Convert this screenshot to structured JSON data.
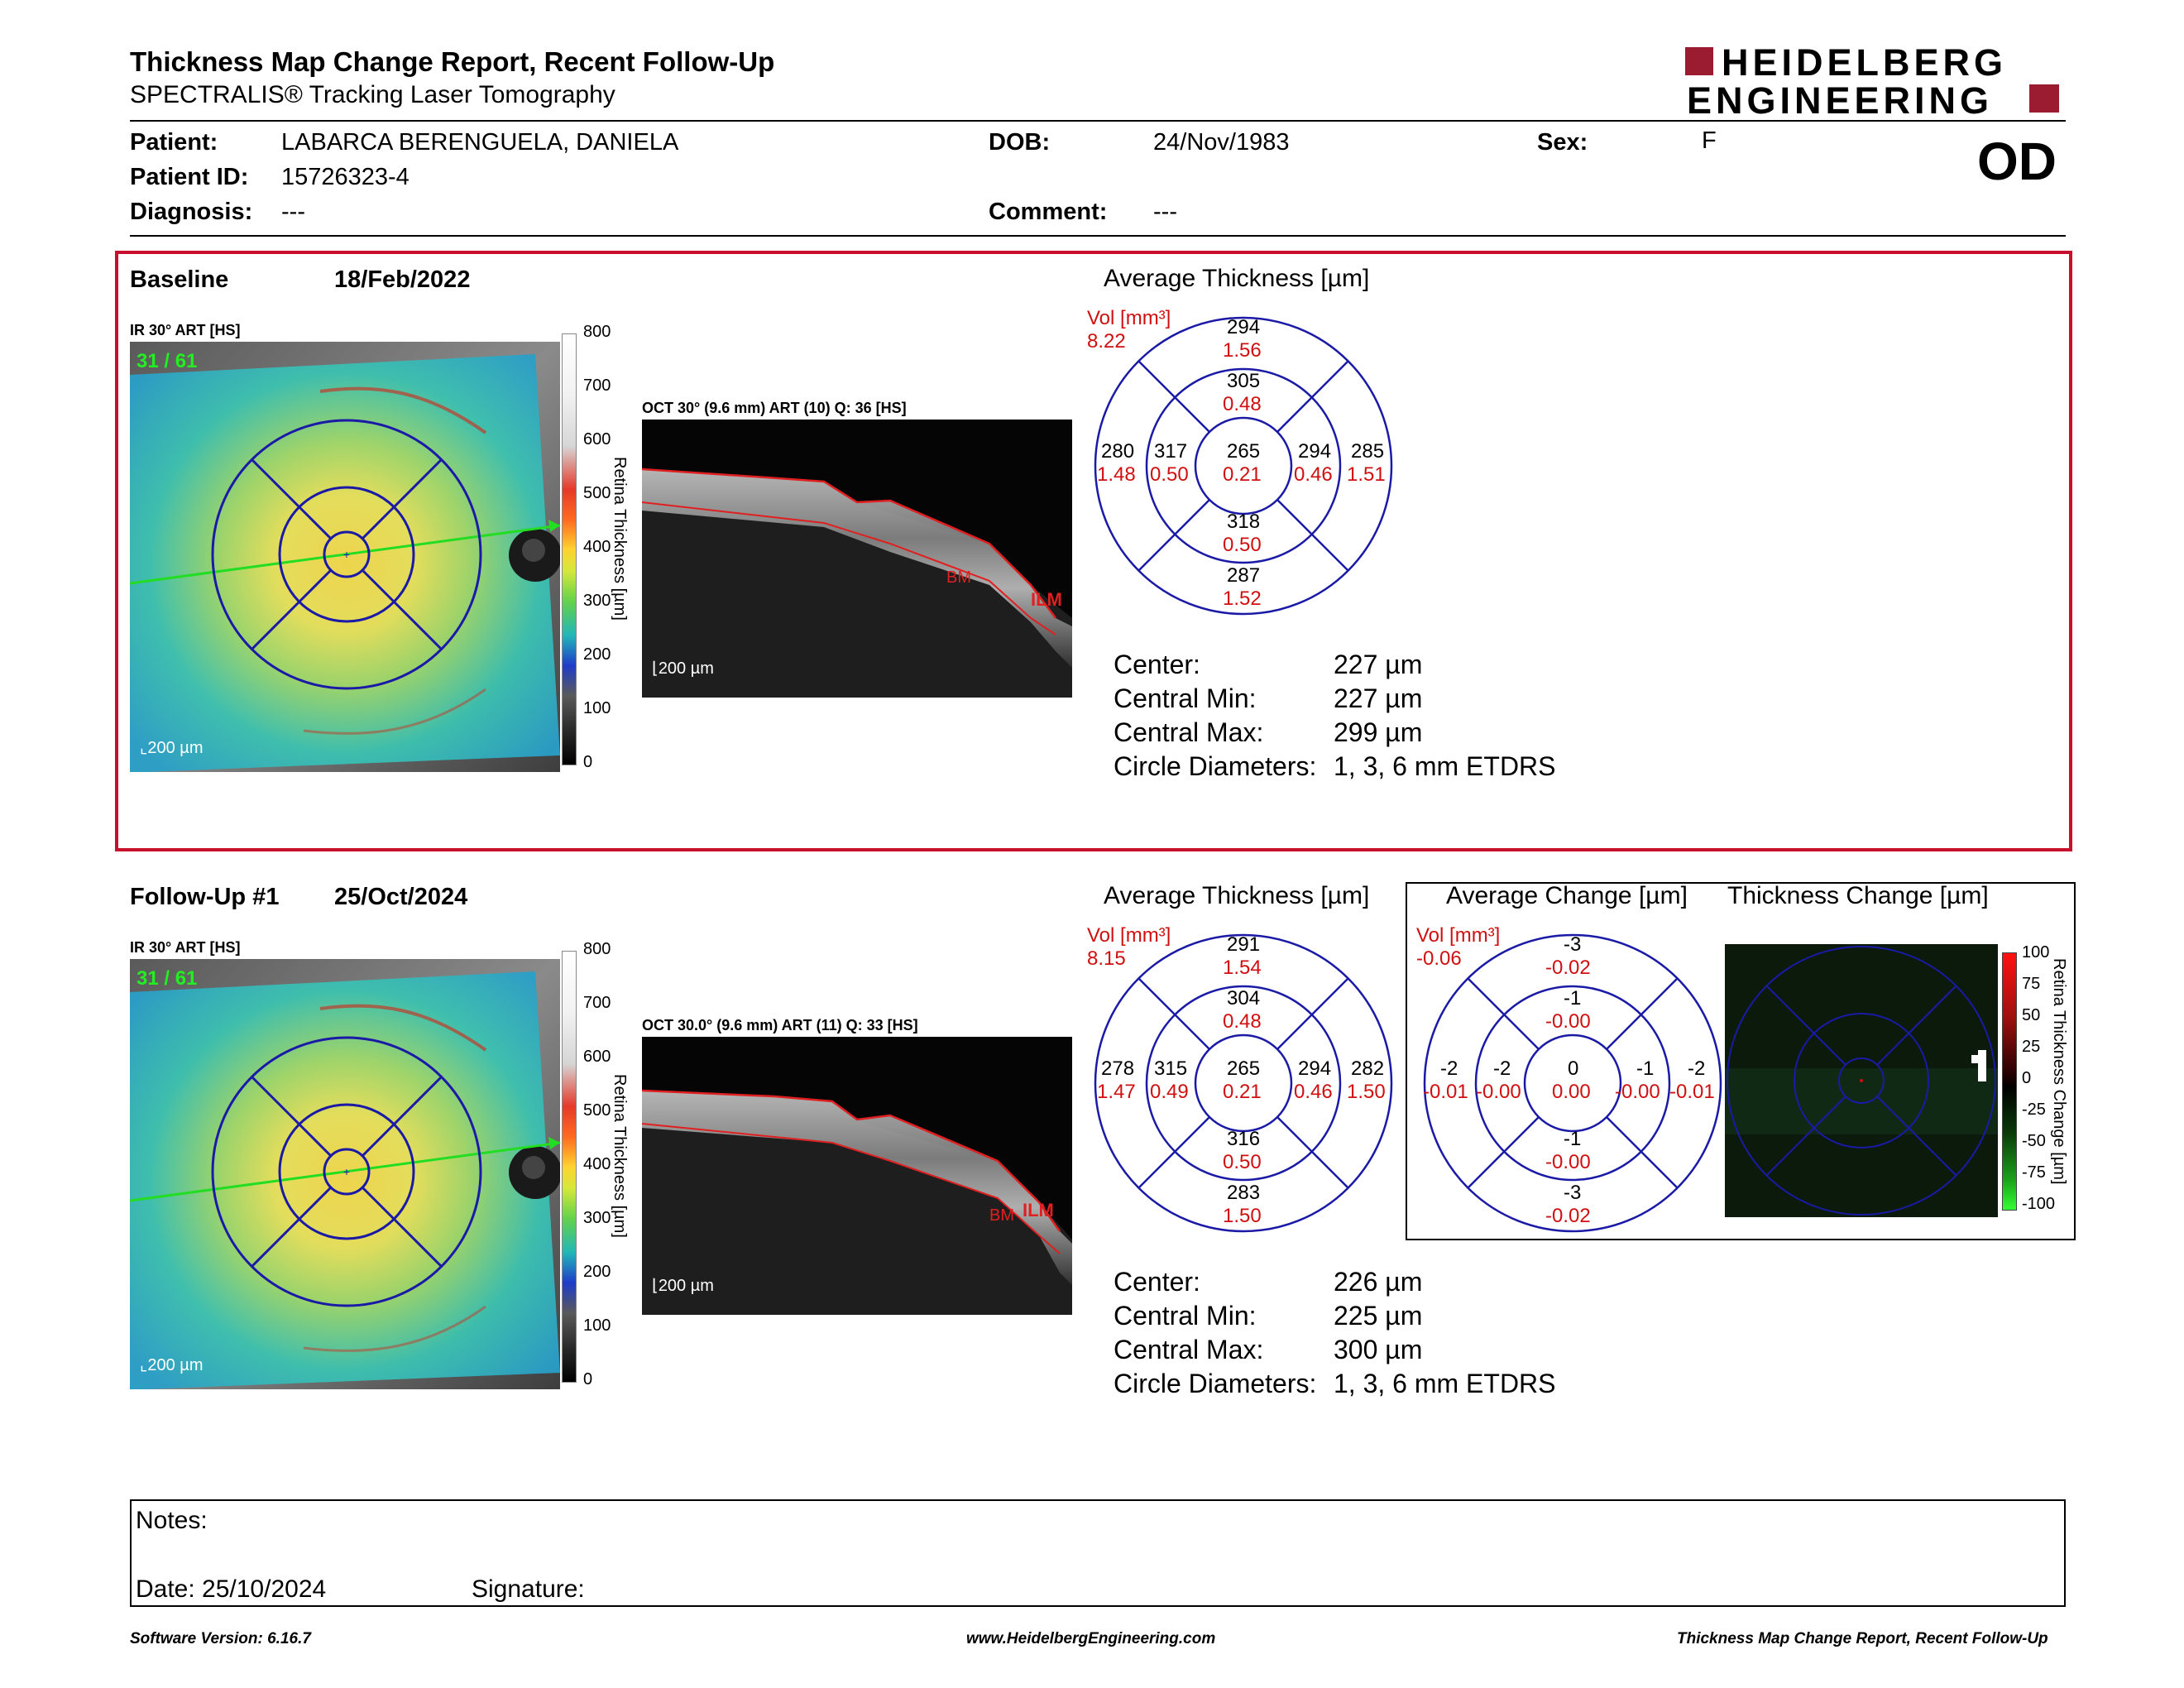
{
  "header": {
    "title": "Thickness Map Change Report, Recent Follow-Up",
    "subtitle": "SPECTRALIS® Tracking Laser Tomography",
    "logo_line1": "HEIDELBERG",
    "logo_line2": "ENGINEERING",
    "eye": "OD"
  },
  "patient": {
    "patient_label": "Patient:",
    "patient_value": "LABARCA BERENGUELA, DANIELA",
    "id_label": "Patient ID:",
    "id_value": "15726323-4",
    "diagnosis_label": "Diagnosis:",
    "diagnosis_value": "---",
    "dob_label": "DOB:",
    "dob_value": "24/Nov/1983",
    "comment_label": "Comment:",
    "comment_value": "---",
    "sex_label": "Sex:",
    "sex_value": "F"
  },
  "baseline": {
    "title": "Baseline",
    "date": "18/Feb/2022",
    "ir_label": "IR 30° ART [HS]",
    "ir_counter": "31 / 61",
    "scale": "200 µm",
    "oct_label": "OCT 30° (9.6 mm) ART (10) Q: 36 [HS]",
    "oct_scale": "200 µm",
    "bm": "BM",
    "ilm": "ILM",
    "avg_title": "Average Thickness [µm]",
    "vol_label": "Vol [mm³]",
    "vol_value": "8.22",
    "sectors": {
      "center_t": "265",
      "center_v": "0.21",
      "in_sup_t": "305",
      "in_sup_v": "0.48",
      "in_inf_t": "318",
      "in_inf_v": "0.50",
      "in_tem_t": "317",
      "in_tem_v": "0.50",
      "in_nas_t": "294",
      "in_nas_v": "0.46",
      "out_sup_t": "294",
      "out_sup_v": "1.56",
      "out_inf_t": "287",
      "out_inf_v": "1.52",
      "out_tem_t": "280",
      "out_tem_v": "1.48",
      "out_nas_t": "285",
      "out_nas_v": "1.51"
    },
    "stats": {
      "center_label": "Center:",
      "center_value": "227 µm",
      "min_label": "Central Min:",
      "min_value": "227 µm",
      "max_label": "Central Max:",
      "max_value": "299 µm",
      "diam_label": "Circle Diameters:",
      "diam_value": "1, 3, 6 mm ETDRS"
    }
  },
  "followup": {
    "title": "Follow-Up #1",
    "date": "25/Oct/2024",
    "ir_label": "IR 30° ART [HS]",
    "ir_counter": "31 / 61",
    "scale": "200 µm",
    "oct_label": "OCT 30.0° (9.6 mm) ART (11) Q: 33 [HS]",
    "oct_scale": "200 µm",
    "bm": "BM",
    "ilm": "ILM",
    "avg_title": "Average Thickness [µm]",
    "vol_label": "Vol [mm³]",
    "vol_value": "8.15",
    "sectors": {
      "center_t": "265",
      "center_v": "0.21",
      "in_sup_t": "304",
      "in_sup_v": "0.48",
      "in_inf_t": "316",
      "in_inf_v": "0.50",
      "in_tem_t": "315",
      "in_tem_v": "0.49",
      "in_nas_t": "294",
      "in_nas_v": "0.46",
      "out_sup_t": "291",
      "out_sup_v": "1.54",
      "out_inf_t": "283",
      "out_inf_v": "1.50",
      "out_tem_t": "278",
      "out_tem_v": "1.47",
      "out_nas_t": "282",
      "out_nas_v": "1.50"
    },
    "change_title": "Average Change [µm]",
    "change_vol_label": "Vol [mm³]",
    "change_vol_value": "-0.06",
    "change": {
      "center_t": "0",
      "center_v": "0.00",
      "in_sup_t": "-1",
      "in_sup_v": "-0.00",
      "in_inf_t": "-1",
      "in_inf_v": "-0.00",
      "in_tem_t": "-2",
      "in_tem_v": "-0.00",
      "in_nas_t": "-1",
      "in_nas_v": "-0.00",
      "out_sup_t": "-3",
      "out_sup_v": "-0.02",
      "out_inf_t": "-3",
      "out_inf_v": "-0.02",
      "out_tem_t": "-2",
      "out_tem_v": "-0.01",
      "out_nas_t": "-2",
      "out_nas_v": "-0.01"
    },
    "thickness_change_title": "Thickness Change [µm]",
    "stats": {
      "center_label": "Center:",
      "center_value": "226 µm",
      "min_label": "Central Min:",
      "min_value": "225 µm",
      "max_label": "Central Max:",
      "max_value": "300 µm",
      "diam_label": "Circle Diameters:",
      "diam_value": "1, 3, 6 mm ETDRS"
    }
  },
  "colorbar": {
    "title": "Retina Thickness [µm]",
    "ticks": [
      "800",
      "700",
      "600",
      "500",
      "400",
      "300",
      "200",
      "100",
      "0"
    ]
  },
  "change_colorbar": {
    "title": "Retina Thickness Change [µm]",
    "ticks": [
      "100",
      "75",
      "50",
      "25",
      "0",
      "-25",
      "-50",
      "-75",
      "-100"
    ]
  },
  "notes": {
    "notes_label": "Notes:",
    "date_label": "Date: 25/10/2024",
    "signature_label": "Signature:"
  },
  "footer": {
    "version": "Software Version: 6.16.7",
    "url": "www.HeidelbergEngineering.com",
    "report": "Thickness Map Change Report, Recent Follow-Up"
  },
  "colors": {
    "brand_red": "#9b1b30",
    "frame_red": "#c8102e",
    "etdrs_blue": "#1a1aa6",
    "value_red": "#d01010"
  }
}
